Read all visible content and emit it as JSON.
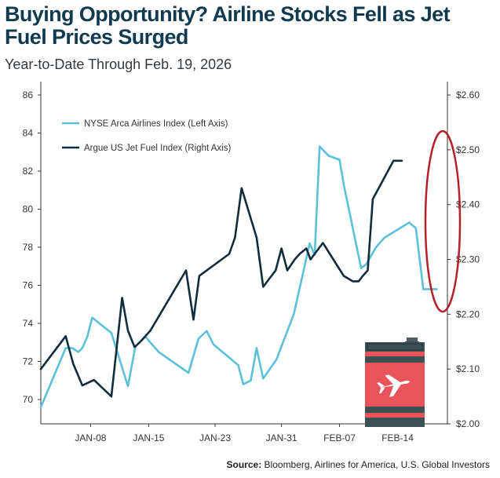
{
  "title": "Buying Opportunity? Airline Stocks Fell as Jet Fuel Prices Surged",
  "subtitle": "Year-to-Date Through Feb. 19, 2026",
  "source_label": "Source:",
  "source_text": "Bloomberg, Airlines for America, U.S. Global Investors",
  "colors": {
    "airlines": "#5bc0d8",
    "jetfuel": "#0f2d3d",
    "highlight": "#b5202a",
    "barrel": "#e8545a"
  },
  "icons": [
    "fuel-barrel-icon",
    "airplane-icon"
  ],
  "chart_data": {
    "type": "line",
    "x_tick_labels": [
      "JAN-08",
      "JAN-15",
      "JAN-23",
      "JAN-31",
      "FEB-07",
      "FEB-14"
    ],
    "x_tick_days": [
      8,
      15,
      23,
      31,
      38,
      45
    ],
    "xlim": [
      2,
      51
    ],
    "left_axis": {
      "ylim": [
        69,
        87
      ],
      "ticks": [
        70,
        72,
        74,
        76,
        78,
        80,
        82,
        84,
        86
      ]
    },
    "right_axis": {
      "ylim": [
        2.0,
        2.62
      ],
      "ticks": [
        "$2.00",
        "$2.10",
        "$2.20",
        "$2.30",
        "$2.40",
        "$2.50",
        "$2.60"
      ],
      "tick_values": [
        2.0,
        2.1,
        2.2,
        2.3,
        2.4,
        2.5,
        2.6
      ]
    },
    "series": [
      {
        "name": "NYSE Arca Airlines Index (Left Axis)",
        "axis": "left",
        "days": [
          2,
          5,
          5.8,
          6.5,
          7,
          7.6,
          8.2,
          10.5,
          12.5,
          13.4,
          14.6,
          15.2,
          16.2,
          19.8,
          21,
          22,
          22.8,
          25.8,
          26.4,
          27.3,
          28,
          28.8,
          30.4,
          32.5,
          34.4,
          35,
          35.6,
          36.7,
          38,
          38.5,
          40.6,
          41.2,
          42.4,
          43.4,
          46.4,
          47.2,
          48.1,
          49.1,
          49.7
        ],
        "values": [
          69.6,
          72.7,
          72.7,
          72.5,
          72.7,
          73.3,
          74.3,
          73.5,
          70.7,
          72.8,
          73.3,
          73.0,
          72.5,
          71.4,
          73.2,
          73.6,
          72.9,
          71.8,
          70.8,
          71.0,
          72.7,
          71.1,
          72.1,
          74.5,
          78.2,
          77.6,
          83.3,
          82.8,
          82.6,
          81.3,
          76.9,
          77.1,
          78.0,
          78.5,
          79.3,
          79.0,
          75.8,
          75.8,
          75.8
        ],
        "render_days_limit": 48.1
      },
      {
        "name": "Argue US Jet Fuel Index (Right Axis)",
        "axis": "right",
        "days": [
          2,
          5,
          5.9,
          7,
          8.4,
          10.5,
          11.8,
          12.5,
          13.3,
          14,
          15.2,
          19.5,
          20.4,
          21.1,
          22,
          24.7,
          25.4,
          26.2,
          28,
          28.8,
          30.3,
          31,
          31.7,
          32.6,
          33.2,
          34,
          34.5,
          36,
          38.5,
          39.6,
          40.3,
          40.8,
          41.4,
          42,
          44.5,
          45.5
        ],
        "values": [
          2.1,
          2.16,
          2.11,
          2.07,
          2.08,
          2.05,
          2.23,
          2.17,
          2.14,
          2.15,
          2.17,
          2.28,
          2.19,
          2.27,
          2.28,
          2.31,
          2.34,
          2.43,
          2.34,
          2.25,
          2.28,
          2.32,
          2.28,
          2.3,
          2.31,
          2.32,
          2.3,
          2.33,
          2.27,
          2.26,
          2.26,
          2.27,
          2.28,
          2.41,
          2.48,
          2.48
        ],
        "render_days_limit": 49.7
      }
    ]
  }
}
